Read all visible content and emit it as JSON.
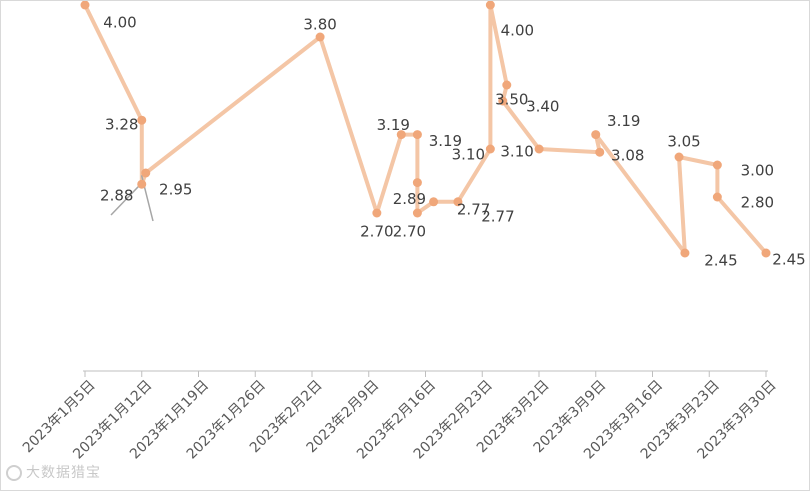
{
  "chart_data": {
    "type": "line",
    "x_axis": {
      "type": "date",
      "range": [
        "2023-01-05",
        "2023-03-30"
      ],
      "ticks": [
        {
          "date": "2023-01-05",
          "label": "2023年1月5日"
        },
        {
          "date": "2023-01-12",
          "label": "2023年1月12日"
        },
        {
          "date": "2023-01-19",
          "label": "2023年1月19日"
        },
        {
          "date": "2023-01-26",
          "label": "2023年1月26日"
        },
        {
          "date": "2023-02-02",
          "label": "2023年2月2日"
        },
        {
          "date": "2023-02-09",
          "label": "2023年2月9日"
        },
        {
          "date": "2023-02-16",
          "label": "2023年2月16日"
        },
        {
          "date": "2023-02-23",
          "label": "2023年2月23日"
        },
        {
          "date": "2023-03-02",
          "label": "2023年3月2日"
        },
        {
          "date": "2023-03-09",
          "label": "2023年3月9日"
        },
        {
          "date": "2023-03-16",
          "label": "2023年3月16日"
        },
        {
          "date": "2023-03-23",
          "label": "2023年3月23日"
        },
        {
          "date": "2023-03-30",
          "label": "2023年3月30日"
        }
      ]
    },
    "y_axis": {
      "visible": false,
      "range": [
        1.8,
        4.0
      ]
    },
    "grid": false,
    "legend": "none",
    "series": [
      {
        "color": "#f4c6a6",
        "marker_color": "#f0a77a",
        "points": [
          {
            "x": "2023-01-05",
            "y": 4.0,
            "label": "4.00"
          },
          {
            "x": "2023-01-12",
            "y": 3.28,
            "label": "3.28"
          },
          {
            "x": "2023-01-12",
            "y": 2.88,
            "label": "2.88"
          },
          {
            "x": "2023-01-12",
            "y": 2.95,
            "label": "2.95"
          },
          {
            "x": "2023-02-03",
            "y": 3.8,
            "label": "3.80"
          },
          {
            "x": "2023-02-10",
            "y": 2.7,
            "label": "2.70"
          },
          {
            "x": "2023-02-14",
            "y": 3.19,
            "label": "3.19"
          },
          {
            "x": "2023-02-15",
            "y": 3.19,
            "label": "3.19"
          },
          {
            "x": "2023-02-15",
            "y": 2.89,
            "label": "2.89"
          },
          {
            "x": "2023-02-15",
            "y": 2.7,
            "label": "2.70"
          },
          {
            "x": "2023-02-17",
            "y": 2.77,
            "label": "2.77"
          },
          {
            "x": "2023-02-20",
            "y": 2.77,
            "label": "2.77"
          },
          {
            "x": "2023-02-24",
            "y": 3.1,
            "label": "3.10"
          },
          {
            "x": "2023-02-24",
            "y": 4.0,
            "label": "4.00"
          },
          {
            "x": "2023-02-28",
            "y": 3.5,
            "label": "3.50"
          },
          {
            "x": "2023-02-28",
            "y": 3.4,
            "label": "3.40"
          },
          {
            "x": "2023-03-03",
            "y": 3.1,
            "label": "3.10"
          },
          {
            "x": "2023-03-09",
            "y": 3.08,
            "label": "3.08"
          },
          {
            "x": "2023-03-09",
            "y": 3.19,
            "label": "3.19"
          },
          {
            "x": "2023-03-20",
            "y": 2.45,
            "label": "2.45"
          },
          {
            "x": "2023-03-21",
            "y": 3.05,
            "label": "3.05"
          },
          {
            "x": "2023-03-24",
            "y": 3.0,
            "label": "3.00"
          },
          {
            "x": "2023-03-24",
            "y": 2.8,
            "label": "2.80"
          },
          {
            "x": "2023-03-30",
            "y": 2.45,
            "label": "2.45"
          }
        ]
      }
    ]
  },
  "watermark": {
    "text": "大数据猎宝"
  }
}
